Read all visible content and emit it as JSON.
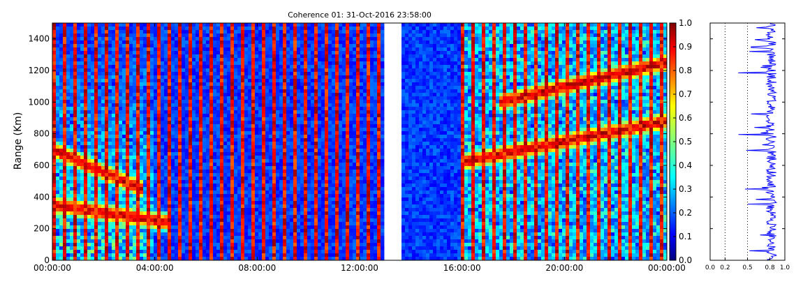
{
  "chart_data": [
    {
      "type": "heatmap",
      "title": "Coherence 01: 31-Oct-2016 23:58:00",
      "ylabel": "Range (Km)",
      "xlabel": "",
      "x_range": [
        "00:00:00",
        "24:00:00"
      ],
      "ylim": [
        0,
        1500
      ],
      "x_tick_labels": [
        "00:00:00",
        "04:00:00",
        "08:00:00",
        "12:00:00",
        "16:00:00",
        "20:00:00",
        "00:00:00"
      ],
      "x_tick_hours": [
        0,
        4,
        8,
        12,
        16,
        20,
        24
      ],
      "y_ticks": [
        0,
        200,
        400,
        600,
        800,
        1000,
        1200,
        1400
      ],
      "data_gap_hours": [
        13.0,
        13.5
      ],
      "colormap": "jet",
      "echo_bands_km": [
        {
          "start_hour": 0,
          "end_hour": 4.5,
          "start_km": 350,
          "end_km": 240
        },
        {
          "start_hour": 0,
          "end_hour": 3.5,
          "start_km": 700,
          "end_km": 450
        },
        {
          "start_hour": 16,
          "end_hour": 24,
          "start_km": 620,
          "end_km": 880
        },
        {
          "start_hour": 17.5,
          "end_hour": 24,
          "start_km": 1000,
          "end_km": 1250
        }
      ]
    },
    {
      "type": "line",
      "title": "",
      "xlim": [
        0.0,
        1.0
      ],
      "x_tick_labels": [
        "0.0",
        "0.2",
        "0.5",
        "0.8",
        "1.0"
      ],
      "x_tick_values": [
        0.0,
        0.2,
        0.5,
        0.8,
        1.0
      ],
      "ylim": [
        0,
        1500
      ],
      "reference_lines": [
        0.2,
        0.5
      ],
      "series_color": "#0000ff"
    }
  ],
  "colorbar": {
    "labels": [
      "1.0",
      "0.9",
      "0.8",
      "0.7",
      "0.6",
      "0.5",
      "0.4",
      "0.3",
      "0.2",
      "0.1",
      "0.0"
    ],
    "values": [
      1.0,
      0.9,
      0.8,
      0.7,
      0.6,
      0.5,
      0.4,
      0.3,
      0.2,
      0.1,
      0.0
    ]
  }
}
